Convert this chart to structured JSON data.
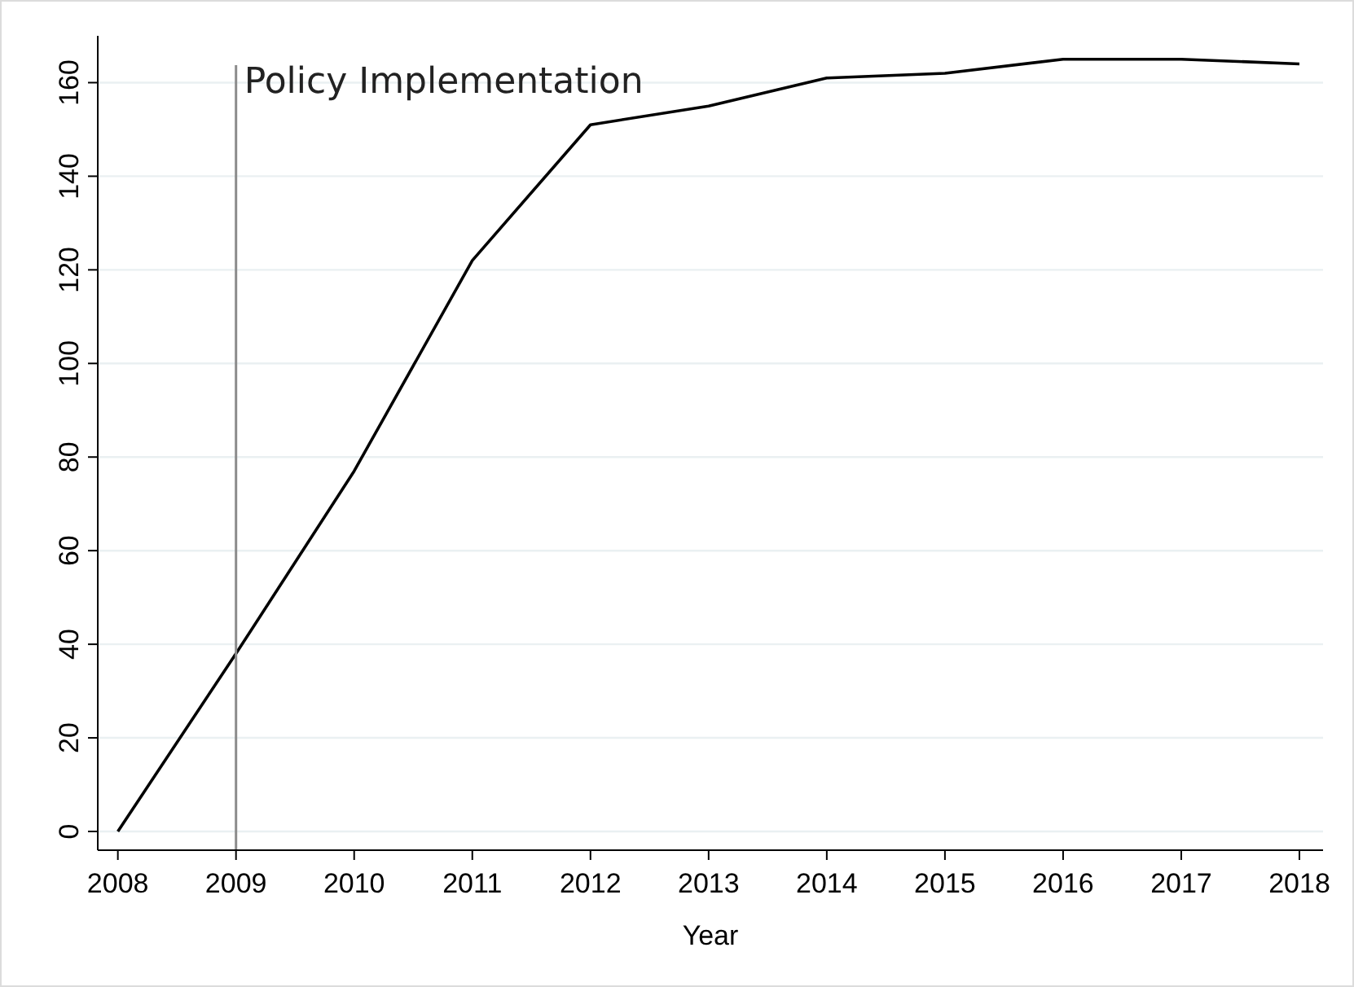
{
  "chart_data": {
    "type": "line",
    "xlabel": "Year",
    "x": [
      2008,
      2009,
      2010,
      2011,
      2012,
      2013,
      2014,
      2015,
      2016,
      2017,
      2018
    ],
    "series": [
      {
        "color": "#000000",
        "values": [
          0,
          38,
          77,
          122,
          151,
          155,
          161,
          162,
          165,
          165,
          164
        ]
      }
    ],
    "xlim": [
      2007.83,
      2018.2
    ],
    "xticks": [
      2008,
      2009,
      2010,
      2011,
      2012,
      2013,
      2014,
      2015,
      2016,
      2017,
      2018
    ],
    "ylim": [
      -4,
      170
    ],
    "yticks": [
      0,
      20,
      40,
      60,
      80,
      100,
      120,
      140,
      160
    ],
    "grid": "y",
    "marker": "none",
    "line_style": "solid",
    "ref_lines": [
      {
        "axis": "x",
        "value": 2009,
        "label": "Policy Implementation",
        "color": "#8c8c8c"
      }
    ]
  }
}
